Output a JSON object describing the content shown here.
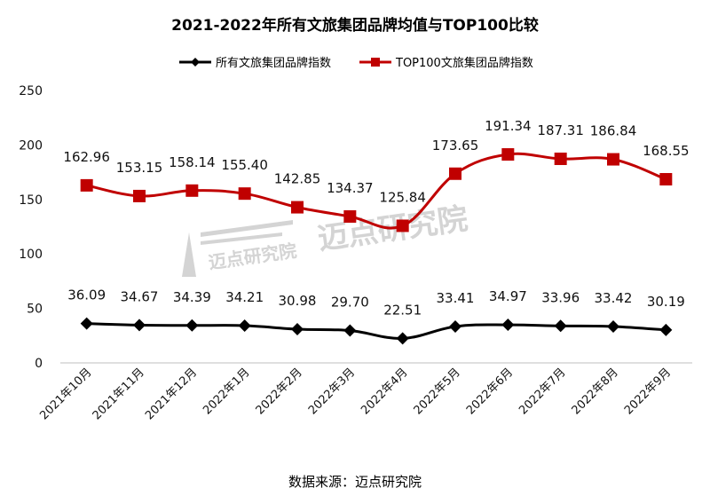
{
  "chart_data": {
    "type": "line",
    "title": "2021-2022年所有文旅集团品牌均值与TOP100比较",
    "categories": [
      "2021年10月",
      "2021年11月",
      "2021年12月",
      "2022年1月",
      "2022年2月",
      "2022年3月",
      "2022年4月",
      "2022年5月",
      "2022年6月",
      "2022年7月",
      "2022年8月",
      "2022年9月"
    ],
    "series": [
      {
        "name": "所有文旅集团品牌指数",
        "color": "#000000",
        "marker": "diamond",
        "values": [
          36.09,
          34.67,
          34.39,
          34.21,
          30.98,
          29.7,
          22.51,
          33.41,
          34.97,
          33.96,
          33.42,
          30.19
        ],
        "labels": [
          "36.09",
          "34.67",
          "34.39",
          "34.21",
          "30.98",
          "29.70",
          "22.51",
          "33.41",
          "34.97",
          "33.96",
          "33.42",
          "30.19"
        ]
      },
      {
        "name": "TOP100文旅集团品牌指数",
        "color": "#c00000",
        "marker": "square",
        "values": [
          162.96,
          153.15,
          158.14,
          155.4,
          142.85,
          134.37,
          125.84,
          173.65,
          191.34,
          187.31,
          186.84,
          168.55
        ],
        "labels": [
          "162.96",
          "153.15",
          "158.14",
          "155.40",
          "142.85",
          "134.37",
          "125.84",
          "173.65",
          "191.34",
          "187.31",
          "186.84",
          "168.55"
        ]
      }
    ],
    "ylim": [
      0,
      250
    ],
    "yticks": [
      0,
      50,
      100,
      150,
      200,
      250
    ],
    "grid": false,
    "legend": "top"
  },
  "watermark": "迈点研究院",
  "source": "数据来源：迈点研究院"
}
